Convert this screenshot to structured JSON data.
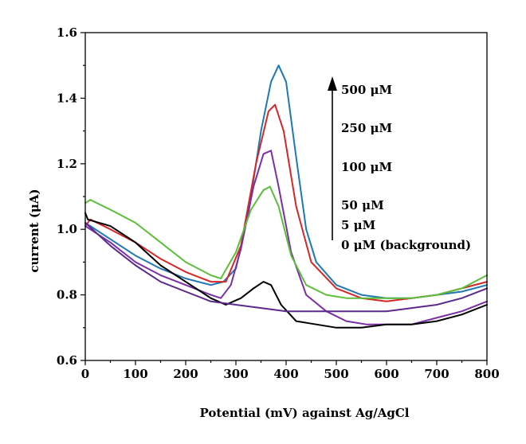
{
  "chart_data": {
    "type": "line",
    "title": "",
    "xlabel": "Potential (mV) against Ag/AgCl",
    "ylabel": "current (μA)",
    "xlim": [
      0,
      800
    ],
    "ylim": [
      0.6,
      1.6
    ],
    "xticks": [
      "0",
      "100",
      "200",
      "300",
      "400",
      "500",
      "600",
      "700",
      "800"
    ],
    "yticks": [
      "0.6",
      "0.8",
      "1.0",
      "1.2",
      "1.4",
      "1.6"
    ],
    "grid": false,
    "legend": "none",
    "annotations": {
      "arrow": "up",
      "labels": [
        "500 μM",
        "250 μM",
        "100 μM",
        "50 μM",
        "5 μM",
        "0 μM (background)"
      ]
    },
    "series": [
      {
        "color": "#1f77b4",
        "points": [
          [
            0,
            1.02
          ],
          [
            50,
            0.97
          ],
          [
            100,
            0.92
          ],
          [
            150,
            0.88
          ],
          [
            200,
            0.85
          ],
          [
            250,
            0.83
          ],
          [
            275,
            0.84
          ],
          [
            300,
            0.88
          ],
          [
            325,
            1.05
          ],
          [
            350,
            1.3
          ],
          [
            370,
            1.45
          ],
          [
            385,
            1.5
          ],
          [
            400,
            1.45
          ],
          [
            420,
            1.22
          ],
          [
            440,
            1.0
          ],
          [
            460,
            0.9
          ],
          [
            500,
            0.83
          ],
          [
            550,
            0.8
          ],
          [
            600,
            0.79
          ],
          [
            650,
            0.79
          ],
          [
            700,
            0.8
          ],
          [
            750,
            0.81
          ],
          [
            800,
            0.83
          ]
        ]
      },
      {
        "color": "#d62728",
        "points": [
          [
            0,
            1.01
          ],
          [
            10,
            1.03
          ],
          [
            50,
            1.0
          ],
          [
            100,
            0.96
          ],
          [
            150,
            0.91
          ],
          [
            200,
            0.87
          ],
          [
            250,
            0.84
          ],
          [
            280,
            0.84
          ],
          [
            310,
            0.95
          ],
          [
            340,
            1.2
          ],
          [
            365,
            1.36
          ],
          [
            378,
            1.38
          ],
          [
            395,
            1.3
          ],
          [
            420,
            1.07
          ],
          [
            450,
            0.9
          ],
          [
            500,
            0.82
          ],
          [
            550,
            0.79
          ],
          [
            600,
            0.78
          ],
          [
            650,
            0.79
          ],
          [
            700,
            0.8
          ],
          [
            750,
            0.82
          ],
          [
            800,
            0.84
          ]
        ]
      },
      {
        "color": "#7b2fa6",
        "points": [
          [
            0,
            1.01
          ],
          [
            50,
            0.96
          ],
          [
            100,
            0.9
          ],
          [
            150,
            0.86
          ],
          [
            200,
            0.83
          ],
          [
            250,
            0.8
          ],
          [
            270,
            0.79
          ],
          [
            290,
            0.83
          ],
          [
            310,
            0.94
          ],
          [
            335,
            1.13
          ],
          [
            355,
            1.23
          ],
          [
            370,
            1.24
          ],
          [
            385,
            1.13
          ],
          [
            410,
            0.93
          ],
          [
            440,
            0.8
          ],
          [
            480,
            0.75
          ],
          [
            520,
            0.72
          ],
          [
            560,
            0.71
          ],
          [
            600,
            0.71
          ],
          [
            650,
            0.71
          ],
          [
            700,
            0.73
          ],
          [
            750,
            0.75
          ],
          [
            800,
            0.78
          ]
        ]
      },
      {
        "color": "#5cbf3a",
        "points": [
          [
            0,
            1.08
          ],
          [
            10,
            1.09
          ],
          [
            50,
            1.06
          ],
          [
            100,
            1.02
          ],
          [
            150,
            0.96
          ],
          [
            200,
            0.9
          ],
          [
            250,
            0.86
          ],
          [
            270,
            0.85
          ],
          [
            300,
            0.93
          ],
          [
            330,
            1.06
          ],
          [
            355,
            1.12
          ],
          [
            368,
            1.13
          ],
          [
            385,
            1.07
          ],
          [
            410,
            0.92
          ],
          [
            440,
            0.83
          ],
          [
            480,
            0.8
          ],
          [
            520,
            0.79
          ],
          [
            550,
            0.79
          ],
          [
            600,
            0.79
          ],
          [
            650,
            0.79
          ],
          [
            700,
            0.8
          ],
          [
            750,
            0.82
          ],
          [
            800,
            0.86
          ]
        ]
      },
      {
        "color": "#000000",
        "points": [
          [
            0,
            1.05
          ],
          [
            5,
            1.03
          ],
          [
            50,
            1.01
          ],
          [
            100,
            0.96
          ],
          [
            150,
            0.89
          ],
          [
            200,
            0.84
          ],
          [
            250,
            0.79
          ],
          [
            280,
            0.77
          ],
          [
            310,
            0.79
          ],
          [
            335,
            0.82
          ],
          [
            355,
            0.84
          ],
          [
            370,
            0.83
          ],
          [
            390,
            0.77
          ],
          [
            420,
            0.72
          ],
          [
            460,
            0.71
          ],
          [
            500,
            0.7
          ],
          [
            550,
            0.7
          ],
          [
            600,
            0.71
          ],
          [
            650,
            0.71
          ],
          [
            700,
            0.72
          ],
          [
            750,
            0.74
          ],
          [
            800,
            0.77
          ]
        ]
      },
      {
        "color": "#5b2a8a",
        "points": [
          [
            0,
            1.02
          ],
          [
            50,
            0.95
          ],
          [
            100,
            0.89
          ],
          [
            150,
            0.84
          ],
          [
            200,
            0.81
          ],
          [
            250,
            0.78
          ],
          [
            300,
            0.77
          ],
          [
            350,
            0.76
          ],
          [
            400,
            0.75
          ],
          [
            450,
            0.75
          ],
          [
            500,
            0.75
          ],
          [
            550,
            0.75
          ],
          [
            600,
            0.75
          ],
          [
            650,
            0.76
          ],
          [
            700,
            0.77
          ],
          [
            750,
            0.79
          ],
          [
            800,
            0.82
          ]
        ]
      }
    ]
  }
}
